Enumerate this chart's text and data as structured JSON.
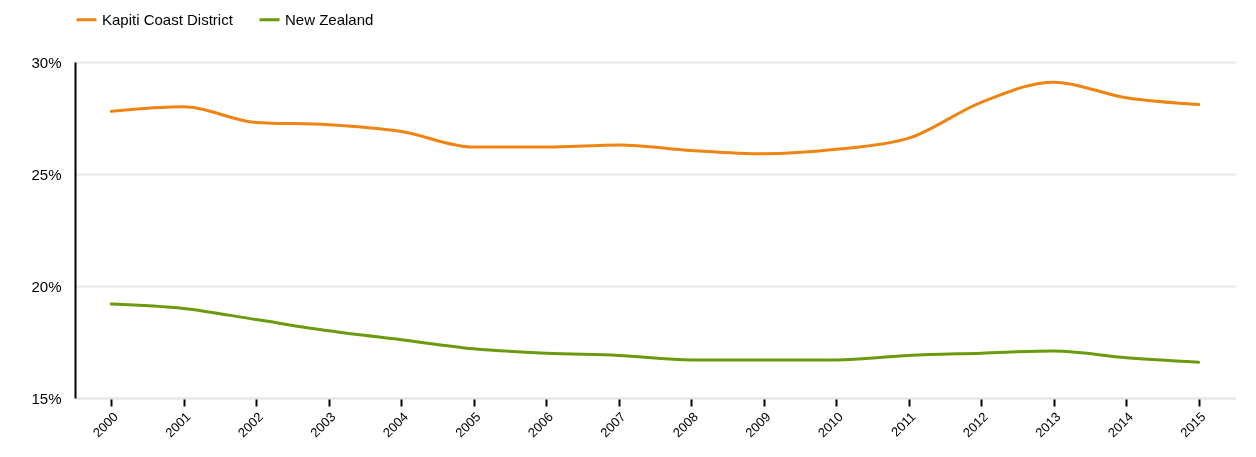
{
  "chart_data": {
    "type": "line",
    "categories": [
      "2000",
      "2001",
      "2002",
      "2003",
      "2004",
      "2005",
      "2006",
      "2007",
      "2008",
      "2009",
      "2010",
      "2011",
      "2012",
      "2013",
      "2014",
      "2015"
    ],
    "series": [
      {
        "name": "Kapiti Coast District",
        "color": "#ee8411",
        "values": [
          27.8,
          28.0,
          27.3,
          27.2,
          26.9,
          26.2,
          26.2,
          26.3,
          26.05,
          25.9,
          26.1,
          26.6,
          28.2,
          29.1,
          28.4,
          28.1
        ]
      },
      {
        "name": "New Zealand",
        "color": "#6b9a0c",
        "values": [
          19.2,
          19.0,
          18.5,
          18.0,
          17.6,
          17.2,
          17.0,
          16.9,
          16.7,
          16.7,
          16.7,
          16.9,
          17.0,
          17.1,
          16.8,
          16.6
        ]
      }
    ],
    "ylim": [
      15,
      30
    ],
    "yticks": [
      {
        "value": 15,
        "label": "15%"
      },
      {
        "value": 20,
        "label": "20%"
      },
      {
        "value": 25,
        "label": "25%"
      },
      {
        "value": 30,
        "label": "30%"
      }
    ],
    "grid": "y",
    "legend": "top",
    "marker": "none",
    "line_style": "solid"
  }
}
